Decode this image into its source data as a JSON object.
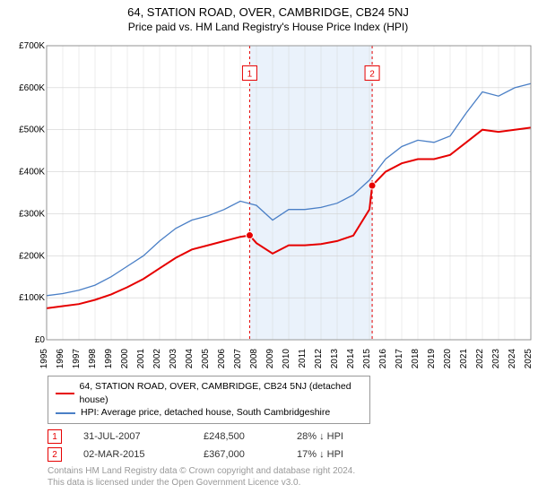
{
  "title": "64, STATION ROAD, OVER, CAMBRIDGE, CB24 5NJ",
  "subtitle": "Price paid vs. HM Land Registry's House Price Index (HPI)",
  "chart": {
    "type": "line",
    "background_color": "#ffffff",
    "grid_color": "#d0d0d0",
    "shaded_band": {
      "x_start": 2007.6,
      "x_end": 2015.2,
      "fill": "#eaf2fb"
    },
    "xlim": [
      1995,
      2025
    ],
    "ylim": [
      0,
      700000
    ],
    "ytick_step": 100000,
    "y_ticks": [
      "£0",
      "£100K",
      "£200K",
      "£300K",
      "£400K",
      "£500K",
      "£600K",
      "£700K"
    ],
    "x_ticks": [
      1995,
      1996,
      1997,
      1998,
      1999,
      2000,
      2001,
      2002,
      2003,
      2004,
      2005,
      2006,
      2007,
      2008,
      2009,
      2010,
      2011,
      2012,
      2013,
      2014,
      2015,
      2016,
      2017,
      2018,
      2019,
      2020,
      2021,
      2022,
      2023,
      2024,
      2025
    ],
    "line_width_property": 2,
    "line_width_hpi": 1.3,
    "marker_radius": 4,
    "series": [
      {
        "id": "property",
        "color": "#e60000",
        "x": [
          1995,
          1996,
          1997,
          1998,
          1999,
          2000,
          2001,
          2002,
          2003,
          2004,
          2005,
          2006,
          2007,
          2007.58,
          2008,
          2009,
          2010,
          2011,
          2012,
          2013,
          2014,
          2015,
          2015.17,
          2016,
          2017,
          2018,
          2019,
          2020,
          2021,
          2022,
          2023,
          2024,
          2025
        ],
        "y": [
          75000,
          80000,
          85000,
          95000,
          108000,
          125000,
          145000,
          170000,
          195000,
          215000,
          225000,
          235000,
          245000,
          248500,
          230000,
          205000,
          225000,
          225000,
          228000,
          235000,
          248000,
          310000,
          367000,
          400000,
          420000,
          430000,
          430000,
          440000,
          470000,
          500000,
          495000,
          500000,
          505000
        ]
      },
      {
        "id": "hpi",
        "color": "#4a7fc6",
        "x": [
          1995,
          1996,
          1997,
          1998,
          1999,
          2000,
          2001,
          2002,
          2003,
          2004,
          2005,
          2006,
          2007,
          2008,
          2009,
          2010,
          2011,
          2012,
          2013,
          2014,
          2015,
          2016,
          2017,
          2018,
          2019,
          2020,
          2021,
          2022,
          2023,
          2024,
          2025
        ],
        "y": [
          105000,
          110000,
          118000,
          130000,
          150000,
          175000,
          200000,
          235000,
          265000,
          285000,
          295000,
          310000,
          330000,
          320000,
          285000,
          310000,
          310000,
          315000,
          325000,
          345000,
          380000,
          430000,
          460000,
          475000,
          470000,
          485000,
          540000,
          590000,
          580000,
          600000,
          610000
        ]
      }
    ],
    "sale_markers": [
      {
        "n": "1",
        "x": 2007.58,
        "y": 248500,
        "label_y": 635000
      },
      {
        "n": "2",
        "x": 2015.17,
        "y": 367000,
        "label_y": 635000
      }
    ],
    "marker_line_color": "#e60000",
    "marker_line_dash": "3,3"
  },
  "legend": {
    "border_color": "#999999",
    "items": [
      {
        "color": "#e60000",
        "label": "64, STATION ROAD, OVER, CAMBRIDGE, CB24 5NJ (detached house)"
      },
      {
        "color": "#4a7fc6",
        "label": "HPI: Average price, detached house, South Cambridgeshire"
      }
    ]
  },
  "sales": [
    {
      "n": "1",
      "date": "31-JUL-2007",
      "price": "£248,500",
      "diff": "28% ↓ HPI"
    },
    {
      "n": "2",
      "date": "02-MAR-2015",
      "price": "£367,000",
      "diff": "17% ↓ HPI"
    }
  ],
  "footer": {
    "line1": "Contains HM Land Registry data © Crown copyright and database right 2024.",
    "line2": "This data is licensed under the Open Government Licence v3.0."
  },
  "fonts": {
    "title_size": 13,
    "subtitle_size": 12,
    "tick_size": 10,
    "legend_size": 10.5,
    "footer_size": 10
  }
}
